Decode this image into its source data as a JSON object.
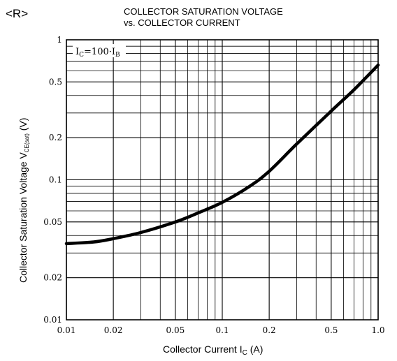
{
  "page_mark": "<R>",
  "chart_data": {
    "type": "line",
    "title_line1": "COLLECTOR SATURATION VOLTAGE",
    "title_line2": "vs. COLLECTOR CURRENT",
    "xlabel": "Collector Current  I",
    "xlabel_sub": "C",
    "xlabel_unit": " (A)",
    "ylabel": "Collector Saturation Voltage  V",
    "ylabel_sub": "CE(sat)",
    "ylabel_unit": " (V)",
    "condition": {
      "text_main": "I",
      "sub1": "C",
      "mid": "=100·I",
      "sub2": "B"
    },
    "x_scale": "log",
    "y_scale": "log",
    "xlim": [
      0.01,
      1.0
    ],
    "ylim": [
      0.01,
      1
    ],
    "grid": true,
    "x_ticks": [
      "0.01",
      "0.02",
      "0.05",
      "0.1",
      "0.2",
      "0.5",
      "1.0"
    ],
    "x_tick_values": [
      0.01,
      0.02,
      0.05,
      0.1,
      0.2,
      0.5,
      1.0
    ],
    "y_ticks": [
      "0.01",
      "0.02",
      "0.05",
      "0.1",
      "0.2",
      "0.5",
      "1"
    ],
    "y_tick_values": [
      0.01,
      0.02,
      0.05,
      0.1,
      0.2,
      0.5,
      1
    ],
    "x_minor": [
      0.03,
      0.04,
      0.06,
      0.07,
      0.08,
      0.09,
      0.3,
      0.4,
      0.6,
      0.7,
      0.8,
      0.9
    ],
    "y_minor": [
      0.03,
      0.04,
      0.06,
      0.07,
      0.08,
      0.09,
      0.3,
      0.4,
      0.6,
      0.7,
      0.8,
      0.9
    ],
    "series": [
      {
        "points": [
          [
            0.01,
            0.035
          ],
          [
            0.015,
            0.036
          ],
          [
            0.02,
            0.038
          ],
          [
            0.03,
            0.042
          ],
          [
            0.05,
            0.05
          ],
          [
            0.07,
            0.058
          ],
          [
            0.1,
            0.069
          ],
          [
            0.15,
            0.09
          ],
          [
            0.2,
            0.115
          ],
          [
            0.3,
            0.18
          ],
          [
            0.5,
            0.31
          ],
          [
            0.7,
            0.44
          ],
          [
            1.0,
            0.66
          ]
        ]
      }
    ]
  }
}
